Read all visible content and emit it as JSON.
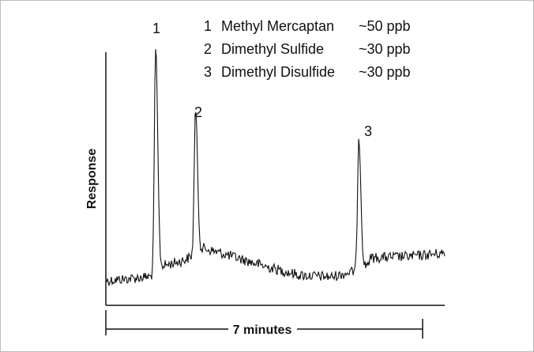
{
  "chart_data": {
    "type": "line",
    "title": "",
    "xlabel": "7 minutes",
    "ylabel": "Response",
    "x_range_minutes": [
      0,
      7
    ],
    "peaks": [
      {
        "label": "1",
        "retention_min": 1.1,
        "height": 1.0,
        "name": "Methyl Mercaptan",
        "conc": "~50 ppb"
      },
      {
        "label": "2",
        "retention_min": 1.98,
        "height": 0.7,
        "name": "Dimethyl Sulfide",
        "conc": "~30 ppb"
      },
      {
        "label": "3",
        "retention_min": 5.59,
        "height": 0.6,
        "name": "Dimethyl Disulfide",
        "conc": "~30 ppb"
      }
    ],
    "legend": [
      {
        "number": "1",
        "name": "Methyl Mercaptan",
        "conc": "~50 ppb"
      },
      {
        "number": "2",
        "name": "Dimethyl Sulfide",
        "conc": "~30 ppb"
      },
      {
        "number": "3",
        "name": "Dimethyl Disulfide",
        "conc": "~30 ppb"
      }
    ],
    "grid": false,
    "legend_placement": "top-right"
  }
}
